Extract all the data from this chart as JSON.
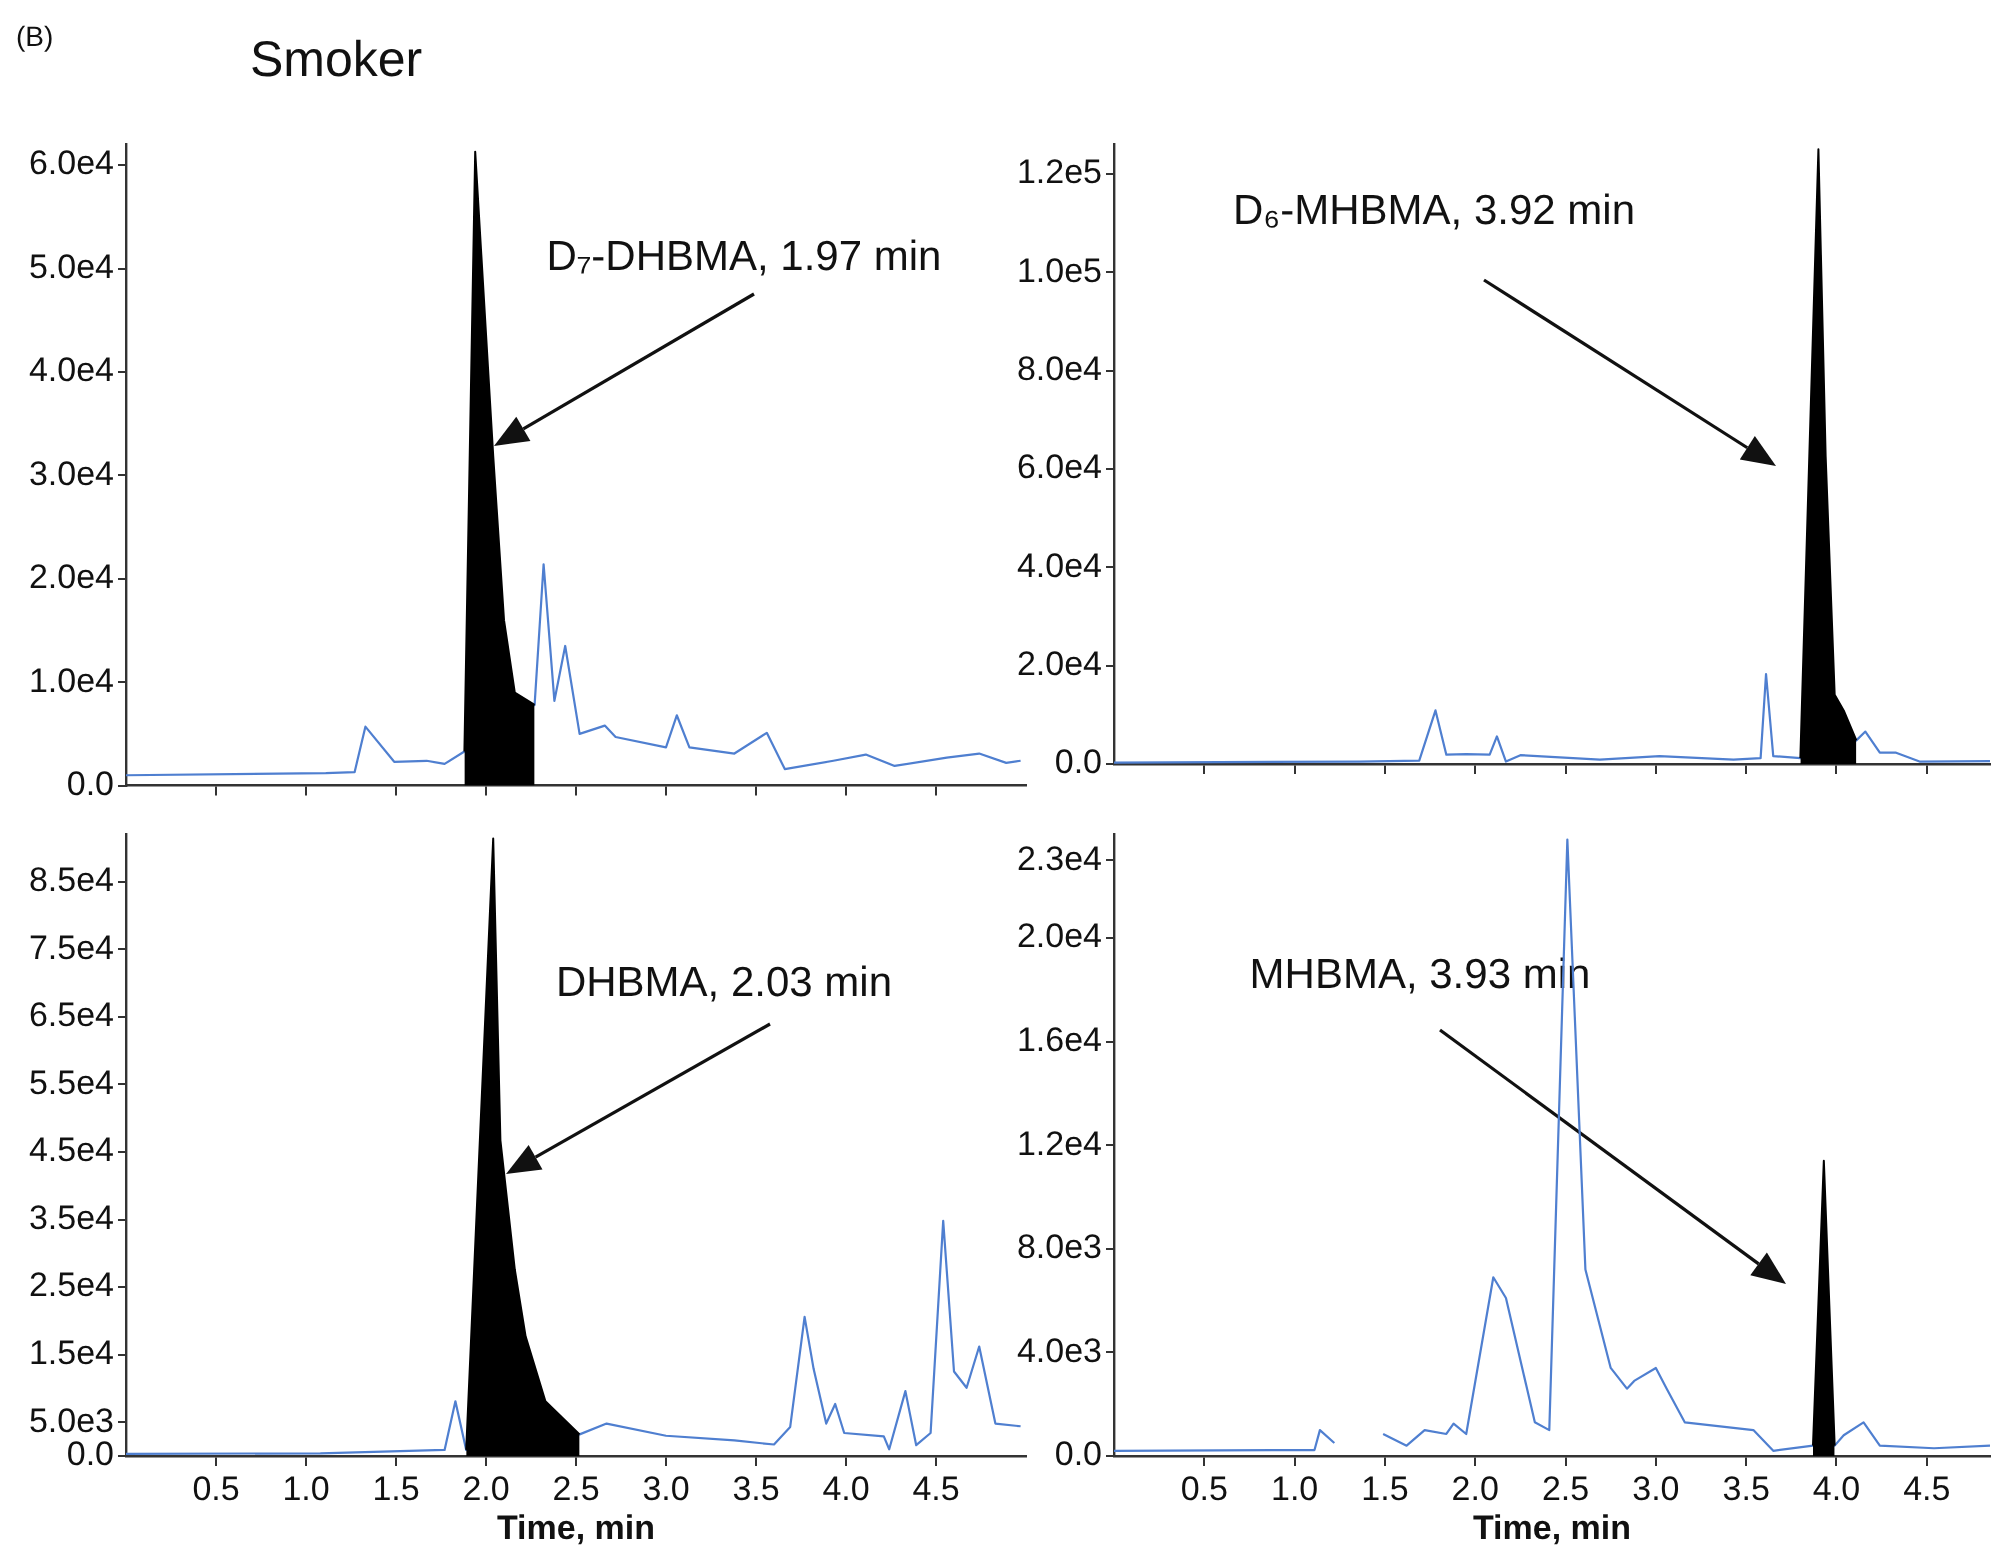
{
  "chart_data": [
    {
      "type": "line",
      "title": "Smoker",
      "annotations": [
        "(B)",
        "D₇-DHBMA, 1.97 min"
      ],
      "xlim": [
        0,
        5.0
      ],
      "xticks": [
        {
          "value": 0.5,
          "label": null
        },
        {
          "value": 1,
          "label": null
        },
        {
          "value": 1.5,
          "label": null
        },
        {
          "value": 2,
          "label": null
        },
        {
          "value": 2.5,
          "label": null
        },
        {
          "value": 3,
          "label": null
        },
        {
          "value": 3.5,
          "label": null
        },
        {
          "value": 4,
          "label": null
        },
        {
          "value": 4.5,
          "label": null
        }
      ],
      "ylim": [
        0,
        62000
      ],
      "yticks": [
        {
          "value": 0,
          "label": "0.0"
        },
        {
          "value": 10000,
          "label": "1.0e4"
        },
        {
          "value": 20000,
          "label": "2.0e4"
        },
        {
          "value": 30000,
          "label": "3.0e4"
        },
        {
          "value": 40000,
          "label": "4.0e4"
        },
        {
          "value": 50000,
          "label": "5.0e4"
        },
        {
          "value": 60000,
          "label": "6.0e4"
        }
      ],
      "tick_labels": "y",
      "grid": false,
      "legend": false,
      "marker": "none",
      "series": [
        {
          "type": "line",
          "color": "#4f7fd0",
          "x": [
            0,
            1.11,
            1.27,
            1.33,
            1.49,
            1.67,
            1.77,
            1.88,
            2.27,
            2.32,
            2.38,
            2.44,
            2.52,
            2.66,
            2.72,
            3.0,
            3.06,
            3.13,
            3.38,
            3.56,
            3.66,
            3.93,
            4.11,
            4.27,
            4.56,
            4.74,
            4.89,
            4.97
          ],
          "values": [
            1000,
            1200,
            1300,
            5700,
            2300,
            2400,
            2100,
            3300,
            7800,
            21400,
            8200,
            13500,
            5000,
            5800,
            4700,
            3700,
            6800,
            3700,
            3100,
            5100,
            1600,
            2400,
            3000,
            1900,
            2700,
            3100,
            2200,
            2400
          ]
        },
        {
          "type": "area",
          "color": "#000000",
          "x": [
            1.88,
            1.94,
            2.04,
            2.1,
            2.16,
            2.27
          ],
          "values": [
            3300,
            61300,
            31900,
            16000,
            9000,
            7800
          ]
        }
      ]
    },
    {
      "type": "line",
      "annotations": [
        "D₆-MHBMA, 3.92 min"
      ],
      "xlim": [
        0,
        4.85
      ],
      "xticks": [
        {
          "value": 0.5,
          "label": null
        },
        {
          "value": 1,
          "label": null
        },
        {
          "value": 1.5,
          "label": null
        },
        {
          "value": 2,
          "label": null
        },
        {
          "value": 2.5,
          "label": null
        },
        {
          "value": 3,
          "label": null
        },
        {
          "value": 3.5,
          "label": null
        },
        {
          "value": 4,
          "label": null
        },
        {
          "value": 4.5,
          "label": null
        }
      ],
      "ylim": [
        0,
        126000
      ],
      "yticks": [
        {
          "value": 0,
          "label": "0.0"
        },
        {
          "value": 20000,
          "label": "2.0e4"
        },
        {
          "value": 40000,
          "label": "4.0e4"
        },
        {
          "value": 60000,
          "label": "6.0e4"
        },
        {
          "value": 80000,
          "label": "8.0e4"
        },
        {
          "value": 100000,
          "label": "1.0e5"
        },
        {
          "value": 120000,
          "label": "1.2e5"
        }
      ],
      "tick_labels": "y",
      "grid": false,
      "legend": false,
      "marker": "none",
      "series": [
        {
          "type": "line",
          "color": "#4f7fd0",
          "x": [
            0,
            1.36,
            1.69,
            1.78,
            1.84,
            1.95,
            2.08,
            2.12,
            2.17,
            2.25,
            2.69,
            3.02,
            3.43,
            3.58,
            3.61,
            3.65,
            3.8,
            4.11,
            4.16,
            4.24,
            4.33,
            4.46,
            4.85
          ],
          "values": [
            300,
            500,
            700,
            10900,
            1900,
            2000,
            1900,
            5600,
            500,
            1800,
            900,
            1600,
            900,
            1200,
            18300,
            1600,
            1200,
            4800,
            6600,
            2300,
            2300,
            500,
            600
          ]
        },
        {
          "type": "area",
          "color": "#000000",
          "x": [
            3.8,
            3.9,
            3.94,
            3.99,
            4.04,
            4.11
          ],
          "values": [
            1200,
            125000,
            62600,
            14100,
            10900,
            4800
          ]
        }
      ]
    },
    {
      "type": "line",
      "xlabel": "Time, min",
      "annotations": [
        "DHBMA, 2.03 min"
      ],
      "xlim": [
        0,
        5.0
      ],
      "xticks": [
        0.5,
        {
          "value": 1,
          "label": "1.0"
        },
        1.5,
        {
          "value": 2,
          "label": "2.0"
        },
        2.5,
        {
          "value": 3,
          "label": "3.0"
        },
        3.5,
        {
          "value": 4,
          "label": "4.0"
        },
        4.5
      ],
      "ylim": [
        0,
        92000
      ],
      "yticks": [
        {
          "value": 0,
          "label": "0.0"
        },
        {
          "value": 5000,
          "label": "5.0e3"
        },
        {
          "value": 15000,
          "label": "1.5e4"
        },
        {
          "value": 25000,
          "label": "2.5e4"
        },
        {
          "value": 35000,
          "label": "3.5e4"
        },
        {
          "value": 45000,
          "label": "4.5e4"
        },
        {
          "value": 55000,
          "label": "5.5e4"
        },
        {
          "value": 65000,
          "label": "6.5e4"
        },
        {
          "value": 75000,
          "label": "7.5e4"
        },
        {
          "value": 85000,
          "label": "8.5e4"
        }
      ],
      "grid": false,
      "legend": false,
      "marker": "none",
      "series": [
        {
          "type": "line",
          "color": "#4f7fd0",
          "x": [
            0,
            1.08,
            1.77,
            1.83,
            1.89,
            2.52,
            2.67,
            3.0,
            3.38,
            3.6,
            3.69,
            3.77,
            3.82,
            3.89,
            3.94,
            3.99,
            4.21,
            4.24,
            4.33,
            4.39,
            4.47,
            4.54,
            4.6,
            4.67,
            4.74,
            4.83,
            4.97
          ],
          "values": [
            300,
            400,
            900,
            8100,
            900,
            3200,
            4800,
            3000,
            2300,
            1700,
            4300,
            20600,
            12900,
            4800,
            7700,
            3400,
            2900,
            1000,
            9600,
            1600,
            3400,
            34800,
            12500,
            10100,
            16200,
            4800,
            4400
          ]
        },
        {
          "type": "area",
          "color": "#000000",
          "x": [
            1.89,
            2.04,
            2.08,
            2.16,
            2.22,
            2.33,
            2.52
          ],
          "values": [
            900,
            91400,
            46700,
            27600,
            17700,
            8100,
            3200
          ]
        }
      ]
    },
    {
      "type": "line",
      "xlabel": "Time, min",
      "annotations": [
        "MHBMA, 3.93 min"
      ],
      "xlim": [
        0,
        4.85
      ],
      "xticks": [
        0.5,
        {
          "value": 1,
          "label": "1.0"
        },
        1.5,
        {
          "value": 2,
          "label": "2.0"
        },
        2.5,
        {
          "value": 3,
          "label": "3.0"
        },
        3.5,
        {
          "value": 4,
          "label": "4.0"
        },
        4.5
      ],
      "ylim": [
        0,
        24000
      ],
      "yticks": [
        {
          "value": 0,
          "label": "0.0"
        },
        {
          "value": 4000,
          "label": "4.0e3"
        },
        {
          "value": 8000,
          "label": "8.0e3"
        },
        {
          "value": 12000,
          "label": "1.2e4"
        },
        {
          "value": 16000,
          "label": "1.6e4"
        },
        {
          "value": 20000,
          "label": "2.0e4"
        },
        {
          "value": 23000,
          "label": "2.3e4"
        }
      ],
      "grid": false,
      "legend": false,
      "marker": "none",
      "series": [
        {
          "type": "line",
          "color": "#4f7fd0",
          "x": [
            0,
            1.11,
            1.14,
            1.22,
            1.35,
            1.49,
            1.62,
            1.72,
            1.84,
            1.88,
            1.95,
            2.1,
            2.17,
            2.33,
            2.41,
            2.51,
            2.61,
            2.75,
            2.84,
            2.88,
            3.0,
            3.06,
            3.16,
            3.54,
            3.65,
            3.87,
            3.99,
            4.04,
            4.15,
            4.24,
            4.54,
            4.85
          ],
          "values": [
            200,
            230,
            1000,
            500,
            null,
            850,
            400,
            1000,
            850,
            1250,
            850,
            6900,
            6100,
            1300,
            1000,
            23800,
            7200,
            3400,
            2600,
            2900,
            3400,
            2600,
            1300,
            1000,
            200,
            400,
            400,
            800,
            1300,
            400,
            300,
            400
          ]
        },
        {
          "type": "area",
          "color": "#000000",
          "x": [
            3.87,
            3.93,
            3.99
          ],
          "values": [
            400,
            11400,
            400
          ]
        }
      ]
    }
  ]
}
